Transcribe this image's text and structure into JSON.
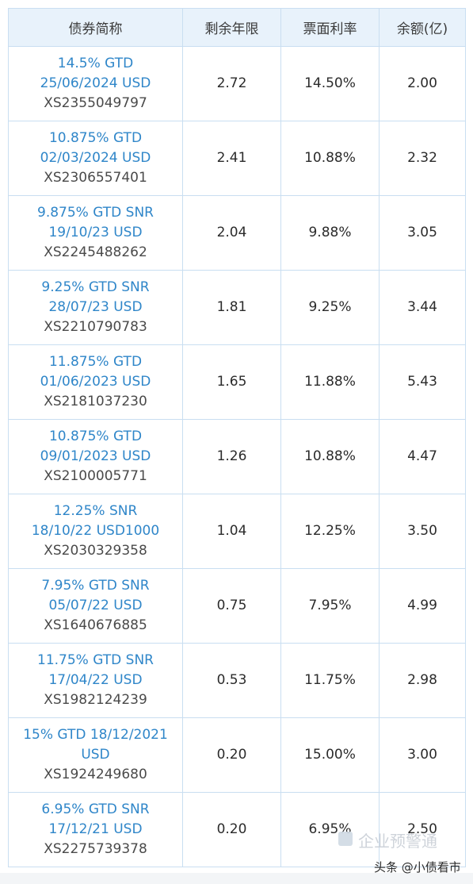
{
  "table": {
    "headers": [
      "债券简称",
      "剩余年限",
      "票面利率",
      "余额(亿)"
    ],
    "rows": [
      {
        "name1": "14.5% GTD",
        "name2": "25/06/2024 USD",
        "isin": "XS2355049797",
        "years": "2.72",
        "rate": "14.50%",
        "balance": "2.00"
      },
      {
        "name1": "10.875% GTD",
        "name2": "02/03/2024 USD",
        "isin": "XS2306557401",
        "years": "2.41",
        "rate": "10.88%",
        "balance": "2.32"
      },
      {
        "name1": "9.875% GTD SNR",
        "name2": "19/10/23 USD",
        "isin": "XS2245488262",
        "years": "2.04",
        "rate": "9.88%",
        "balance": "3.05"
      },
      {
        "name1": "9.25% GTD SNR",
        "name2": "28/07/23 USD",
        "isin": "XS2210790783",
        "years": "1.81",
        "rate": "9.25%",
        "balance": "3.44"
      },
      {
        "name1": "11.875% GTD",
        "name2": "01/06/2023 USD",
        "isin": "XS2181037230",
        "years": "1.65",
        "rate": "11.88%",
        "balance": "5.43"
      },
      {
        "name1": "10.875% GTD",
        "name2": "09/01/2023 USD",
        "isin": "XS2100005771",
        "years": "1.26",
        "rate": "10.88%",
        "balance": "4.47"
      },
      {
        "name1": "12.25% SNR",
        "name2": "18/10/22 USD1000",
        "isin": "XS2030329358",
        "years": "1.04",
        "rate": "12.25%",
        "balance": "3.50"
      },
      {
        "name1": "7.95% GTD SNR",
        "name2": "05/07/22 USD",
        "isin": "XS1640676885",
        "years": "0.75",
        "rate": "7.95%",
        "balance": "4.99"
      },
      {
        "name1": "11.75% GTD SNR",
        "name2": "17/04/22 USD",
        "isin": "XS1982124239",
        "years": "0.53",
        "rate": "11.75%",
        "balance": "2.98"
      },
      {
        "name1": "15% GTD 18/12/2021",
        "name2": "USD",
        "isin": "XS1924249680",
        "years": "0.20",
        "rate": "15.00%",
        "balance": "3.00"
      },
      {
        "name1": "6.95% GTD SNR",
        "name2": "17/12/21 USD",
        "isin": "XS2275739378",
        "years": "0.20",
        "rate": "6.95%",
        "balance": "2.50"
      }
    ]
  },
  "watermark": {
    "brand": "企业预警通",
    "credit": "头条 @小债看市"
  }
}
